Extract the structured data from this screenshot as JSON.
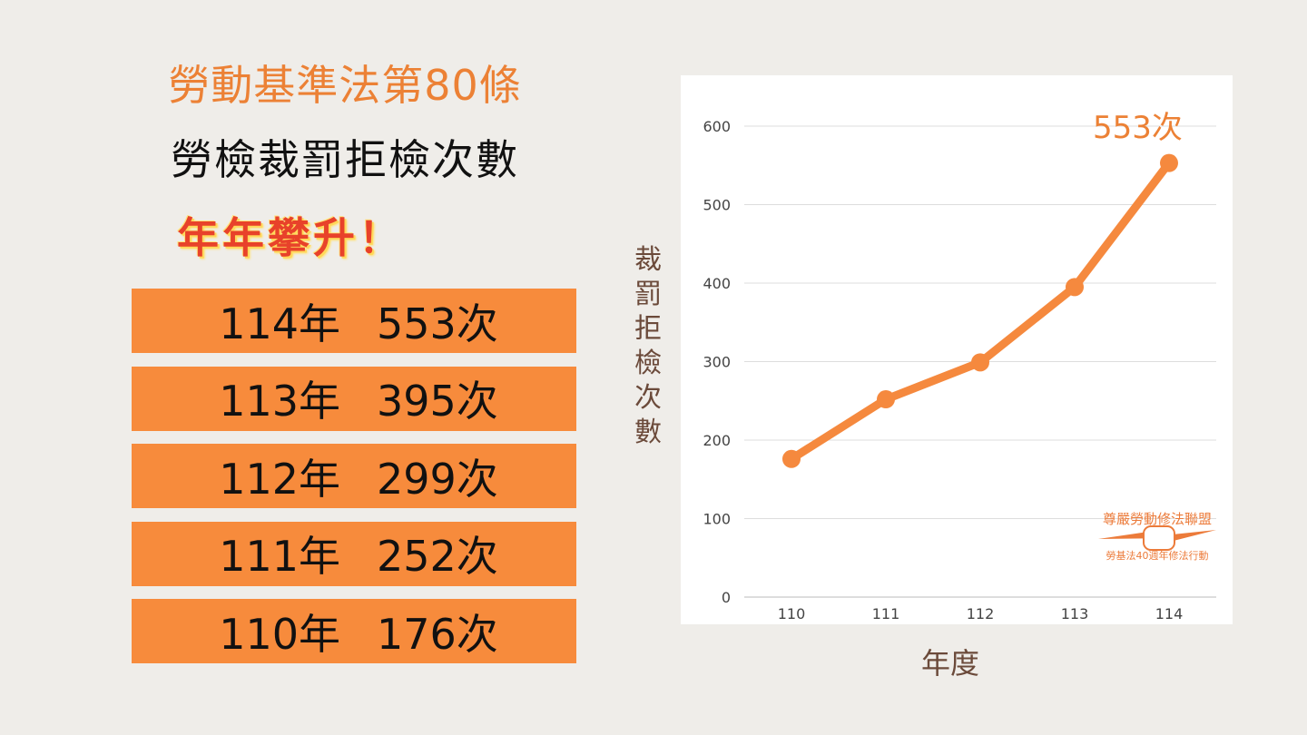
{
  "title_line1": "勞動基準法第80條",
  "title_line2": "勞檢裁罰拒檢次數",
  "title_line3": "年年攀升！",
  "table": [
    {
      "year": "114年",
      "count": "553次"
    },
    {
      "year": "113年",
      "count": "395次"
    },
    {
      "year": "112年",
      "count": "299次"
    },
    {
      "year": "111年",
      "count": "252次"
    },
    {
      "year": "110年",
      "count": "176次"
    }
  ],
  "logo": {
    "name": "尊嚴勞動修法聯盟",
    "tagline": "勞基法40週年修法行動"
  },
  "colors": {
    "accent": "#f78b3c",
    "title_orange": "#ec8135",
    "highlight_red": "#e8422a"
  },
  "chart_data": {
    "type": "line",
    "categories": [
      "110",
      "111",
      "112",
      "113",
      "114"
    ],
    "series": [
      {
        "values": [
          176,
          252,
          299,
          395,
          553
        ]
      }
    ],
    "xlabel": "年度",
    "ylabel": "裁罰拒檢次數",
    "ylim": [
      0,
      600
    ],
    "yticks": [
      "0",
      "100",
      "200",
      "300",
      "400",
      "500",
      "600"
    ],
    "annotation": "553次",
    "grid": true
  }
}
